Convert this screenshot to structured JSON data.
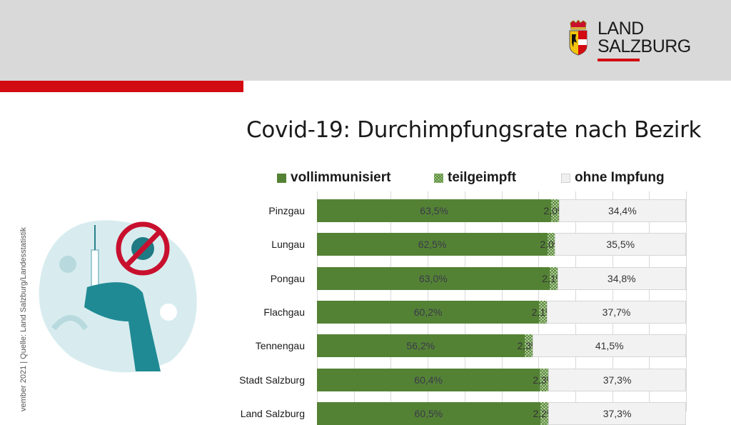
{
  "header": {
    "logo_line1": "LAND",
    "logo_line2": "SALZBURG",
    "colors": {
      "header_bg": "#d9d9d9",
      "accent_red": "#d20a11"
    }
  },
  "source_note": "vember 2021 | Quelle: Land Salzburg/Landesstatistik",
  "chart_data": {
    "type": "bar",
    "orientation": "horizontal",
    "stacked": "100%",
    "title": "Covid-19: Durchimpfungsrate nach Bezirk",
    "xlabel": "",
    "ylabel": "",
    "xlim": [
      0,
      100
    ],
    "grid": true,
    "legend_position": "top",
    "categories": [
      "Pinzgau",
      "Lungau",
      "Pongau",
      "Flachgau",
      "Tennengau",
      "Stadt Salzburg",
      "Land Salzburg"
    ],
    "series": [
      {
        "name": "vollimmunisiert",
        "color": "#548235",
        "values": [
          63.5,
          62.5,
          63.0,
          60.2,
          56.2,
          60.4,
          60.5
        ],
        "labels": [
          "63,5%",
          "62,5%",
          "63,0%",
          "60,2%",
          "56,2%",
          "60,4%",
          "60,5%"
        ]
      },
      {
        "name": "teilgeimpft",
        "color": "#a9d18e",
        "pattern": "checker",
        "values": [
          2.0,
          2.0,
          2.1,
          2.1,
          2.3,
          2.3,
          2.2
        ],
        "labels": [
          "2,0%",
          "2,0%",
          "2,1%",
          "2,1%",
          "2,3%",
          "2,3%",
          "2,2%"
        ]
      },
      {
        "name": "ohne Impfung",
        "color": "#f2f2f2",
        "values": [
          34.4,
          35.5,
          34.8,
          37.7,
          41.5,
          37.3,
          37.3
        ],
        "labels": [
          "34,4%",
          "35,5%",
          "34,8%",
          "37,7%",
          "41,5%",
          "37,3%",
          "37,3%"
        ]
      }
    ],
    "note": "Last row (Land Salzburg) is cut off at the bottom edge; its values are partially illegible/estimated."
  }
}
